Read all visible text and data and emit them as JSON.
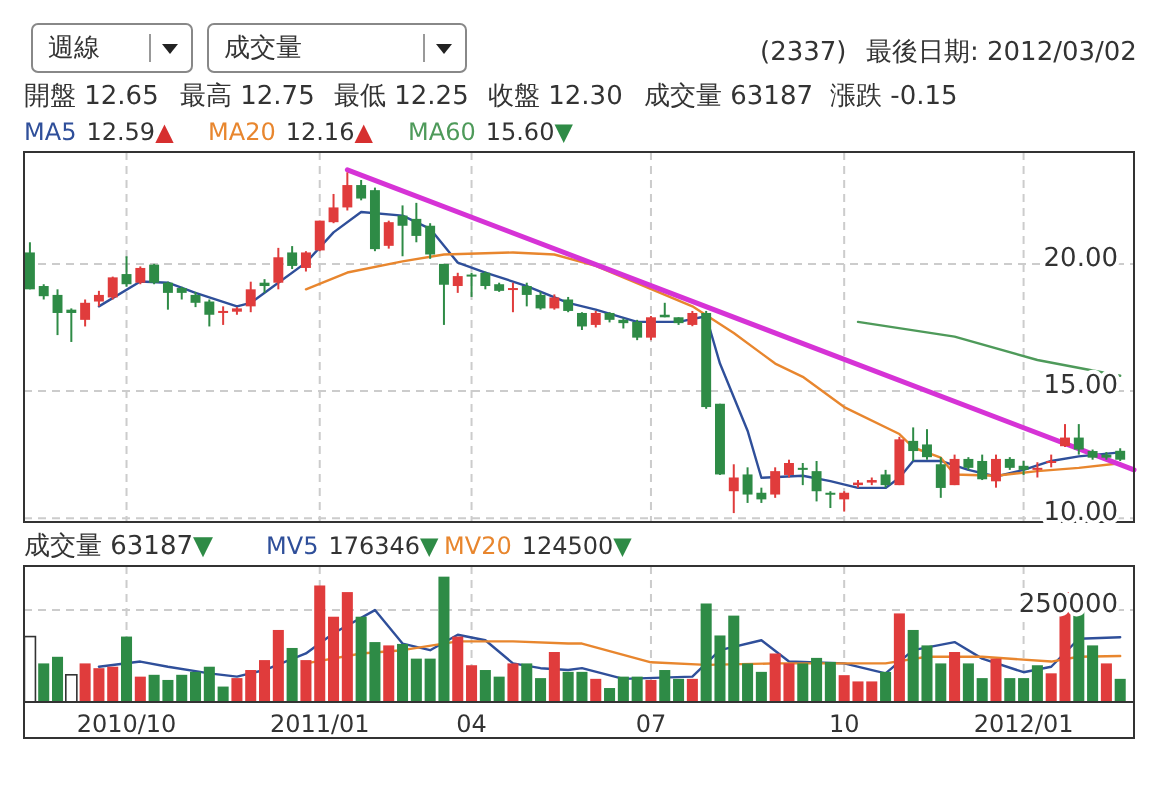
{
  "chart_data": [
    {
      "type": "candlestick",
      "x": [
        "2010-08-27",
        "2010-09-03",
        "2010-09-10",
        "2010-09-17",
        "2010-09-24",
        "2010-10-01",
        "2010-10-08",
        "2010-10-15",
        "2010-10-22",
        "2010-10-29",
        "2010-11-05",
        "2010-11-12",
        "2010-11-19",
        "2010-11-26",
        "2010-12-03",
        "2010-12-10",
        "2010-12-17",
        "2010-12-24",
        "2010-12-31",
        "2011-01-07",
        "2011-01-14",
        "2011-01-21",
        "2011-01-28",
        "2011-02-04",
        "2011-02-11",
        "2011-02-18",
        "2011-02-25",
        "2011-03-04",
        "2011-03-11",
        "2011-03-18",
        "2011-03-25",
        "2011-04-01",
        "2011-04-08",
        "2011-04-15",
        "2011-04-22",
        "2011-04-29",
        "2011-05-06",
        "2011-05-13",
        "2011-05-20",
        "2011-05-27",
        "2011-06-03",
        "2011-06-10",
        "2011-06-17",
        "2011-06-24",
        "2011-07-01",
        "2011-07-08",
        "2011-07-15",
        "2011-07-22",
        "2011-07-29",
        "2011-08-05",
        "2011-08-12",
        "2011-08-19",
        "2011-08-26",
        "2011-09-02",
        "2011-09-09",
        "2011-09-16",
        "2011-09-23",
        "2011-09-30",
        "2011-10-07",
        "2011-10-14",
        "2011-10-21",
        "2011-10-28",
        "2011-11-04",
        "2011-11-11",
        "2011-11-18",
        "2011-11-25",
        "2011-12-02",
        "2011-12-09",
        "2011-12-16",
        "2011-12-23",
        "2011-12-30",
        "2012-01-06",
        "2012-01-13",
        "2012-01-20",
        "2012-01-27",
        "2012-02-03",
        "2012-02-10",
        "2012-02-17",
        "2012-02-24",
        "2012-03-02"
      ],
      "ohlc": [
        [
          20.45,
          20.85,
          19.0,
          19.0
        ],
        [
          19.13,
          19.2,
          18.6,
          18.73
        ],
        [
          18.78,
          19.0,
          17.2,
          18.07
        ],
        [
          18.2,
          18.25,
          16.93,
          18.07
        ],
        [
          17.8,
          18.6,
          17.54,
          18.47
        ],
        [
          18.52,
          18.94,
          18.33,
          18.78
        ],
        [
          18.68,
          19.5,
          18.6,
          19.47
        ],
        [
          19.6,
          20.3,
          19.1,
          19.2
        ],
        [
          19.26,
          19.9,
          19.2,
          19.84
        ],
        [
          19.97,
          20.0,
          19.2,
          19.26
        ],
        [
          19.26,
          19.3,
          18.2,
          18.86
        ],
        [
          19.05,
          19.1,
          18.6,
          18.86
        ],
        [
          18.78,
          18.9,
          18.3,
          18.47
        ],
        [
          18.52,
          18.6,
          17.54,
          18.0
        ],
        [
          18.07,
          18.33,
          17.6,
          18.15
        ],
        [
          18.12,
          18.3,
          18.0,
          18.25
        ],
        [
          18.33,
          19.3,
          18.1,
          19.0
        ],
        [
          19.26,
          19.4,
          18.86,
          19.13
        ],
        [
          19.26,
          20.63,
          19.0,
          20.26
        ],
        [
          20.45,
          20.7,
          19.8,
          19.92
        ],
        [
          19.84,
          20.5,
          19.7,
          20.45
        ],
        [
          20.53,
          21.7,
          20.5,
          21.7
        ],
        [
          21.64,
          22.75,
          21.6,
          22.22
        ],
        [
          22.22,
          23.6,
          22.1,
          23.1
        ],
        [
          23.1,
          23.3,
          22.5,
          22.57
        ],
        [
          22.9,
          23.0,
          20.5,
          20.58
        ],
        [
          20.71,
          21.7,
          20.6,
          21.64
        ],
        [
          21.9,
          22.3,
          20.3,
          21.5
        ],
        [
          21.77,
          22.4,
          20.85,
          21.1
        ],
        [
          21.5,
          21.6,
          20.2,
          20.37
        ],
        [
          20.0,
          20.0,
          17.6,
          19.18
        ],
        [
          19.13,
          19.65,
          18.86,
          19.52
        ],
        [
          19.58,
          19.65,
          18.7,
          19.52
        ],
        [
          19.65,
          19.7,
          19.0,
          19.13
        ],
        [
          19.2,
          19.26,
          18.9,
          18.94
        ],
        [
          18.99,
          19.26,
          18.1,
          19.05
        ],
        [
          19.13,
          19.26,
          18.33,
          18.78
        ],
        [
          18.78,
          18.9,
          18.2,
          18.25
        ],
        [
          18.25,
          18.8,
          18.2,
          18.68
        ],
        [
          18.6,
          18.7,
          18.1,
          18.15
        ],
        [
          18.07,
          18.1,
          17.4,
          17.54
        ],
        [
          17.6,
          18.15,
          17.5,
          18.07
        ],
        [
          18.07,
          18.1,
          17.7,
          17.8
        ],
        [
          17.8,
          17.85,
          17.46,
          17.67
        ],
        [
          17.72,
          17.8,
          17.0,
          17.1
        ],
        [
          17.1,
          17.95,
          17.0,
          17.9
        ],
        [
          18.0,
          18.47,
          17.9,
          17.9
        ],
        [
          17.9,
          17.9,
          17.6,
          17.67
        ],
        [
          17.6,
          18.15,
          17.55,
          18.07
        ],
        [
          18.07,
          18.15,
          14.3,
          14.37
        ],
        [
          14.5,
          14.5,
          11.7,
          11.72
        ],
        [
          11.06,
          12.12,
          10.2,
          11.6
        ],
        [
          11.72,
          12.0,
          10.6,
          10.93
        ],
        [
          11.0,
          11.2,
          10.6,
          10.74
        ],
        [
          10.93,
          12.0,
          10.8,
          11.85
        ],
        [
          11.7,
          12.3,
          11.6,
          12.17
        ],
        [
          11.98,
          12.17,
          11.3,
          11.9
        ],
        [
          11.85,
          12.25,
          10.66,
          11.06
        ],
        [
          11.0,
          11.06,
          10.4,
          10.93
        ],
        [
          10.74,
          11.06,
          10.26,
          11.0
        ],
        [
          11.3,
          11.5,
          11.2,
          11.4
        ],
        [
          11.4,
          11.6,
          11.3,
          11.5
        ],
        [
          11.72,
          11.9,
          11.2,
          11.3
        ],
        [
          11.3,
          13.2,
          11.3,
          13.1
        ],
        [
          13.04,
          13.57,
          12.25,
          12.64
        ],
        [
          12.9,
          13.5,
          12.3,
          12.4
        ],
        [
          12.12,
          12.4,
          10.8,
          11.19
        ],
        [
          11.3,
          12.5,
          11.3,
          12.33
        ],
        [
          12.33,
          12.4,
          11.9,
          11.98
        ],
        [
          12.25,
          12.5,
          11.5,
          11.53
        ],
        [
          11.45,
          12.5,
          11.2,
          12.33
        ],
        [
          12.33,
          12.4,
          11.9,
          11.98
        ],
        [
          12.06,
          12.25,
          11.7,
          11.9
        ],
        [
          11.9,
          12.2,
          11.6,
          11.98
        ],
        [
          12.17,
          12.5,
          12.0,
          12.25
        ],
        [
          12.83,
          13.7,
          12.8,
          13.17
        ],
        [
          13.17,
          13.7,
          12.5,
          12.7
        ],
        [
          12.64,
          12.7,
          12.3,
          12.38
        ],
        [
          12.5,
          12.6,
          12.3,
          12.38
        ],
        [
          12.65,
          12.75,
          12.25,
          12.3
        ]
      ],
      "series": [
        {
          "name": "MA5",
          "color": "#2f4f9a",
          "type": "line",
          "x": [
            "2010-10-01",
            "2010-10-22",
            "2010-11-05",
            "2010-11-19",
            "2010-12-10",
            "2010-12-17",
            "2010-12-31",
            "2011-01-14",
            "2011-01-28",
            "2011-02-11",
            "2011-03-04",
            "2011-03-18",
            "2011-04-01",
            "2011-04-15",
            "2011-05-06",
            "2011-05-27",
            "2011-06-10",
            "2011-07-01",
            "2011-07-22",
            "2011-08-05",
            "2011-08-12",
            "2011-08-26",
            "2011-09-02",
            "2011-09-23",
            "2011-10-07",
            "2011-10-21",
            "2011-11-04",
            "2011-11-11",
            "2011-11-18",
            "2011-12-02",
            "2011-12-16",
            "2011-12-30",
            "2012-01-13",
            "2012-01-27",
            "2012-02-10",
            "2012-03-02"
          ],
          "values": [
            18.33,
            19.31,
            19.26,
            18.86,
            18.33,
            18.47,
            19.26,
            20.05,
            21.24,
            22.04,
            21.9,
            21.38,
            20.05,
            19.66,
            19.13,
            18.47,
            18.2,
            17.72,
            17.72,
            17.94,
            16.08,
            13.44,
            11.59,
            11.67,
            11.46,
            11.19,
            11.19,
            11.59,
            12.25,
            12.25,
            11.9,
            11.64,
            11.9,
            12.25,
            12.43,
            12.59
          ]
        },
        {
          "name": "MA20",
          "color": "#e8862e",
          "type": "line",
          "x": [
            "2011-01-14",
            "2011-02-04",
            "2011-03-04",
            "2011-03-25",
            "2011-04-29",
            "2011-05-20",
            "2011-06-10",
            "2011-07-29",
            "2011-08-19",
            "2011-09-02",
            "2011-09-09",
            "2011-09-23",
            "2011-10-14",
            "2011-11-11",
            "2011-11-18",
            "2011-12-02",
            "2011-12-09",
            "2011-12-30",
            "2012-01-20",
            "2012-02-10",
            "2012-03-02"
          ],
          "values": [
            19.0,
            19.66,
            20.1,
            20.37,
            20.45,
            20.37,
            19.92,
            18.33,
            17.28,
            16.48,
            16.08,
            15.56,
            14.37,
            13.31,
            12.78,
            12.38,
            11.72,
            11.67,
            11.85,
            11.98,
            12.16
          ]
        },
        {
          "name": "MA60",
          "color": "#4e9a5a",
          "type": "line",
          "x": [
            "2011-10-21",
            "2011-12-09",
            "2012-01-20",
            "2012-03-02"
          ],
          "values": [
            17.72,
            17.14,
            16.22,
            15.6
          ]
        },
        {
          "color": "#d633d6",
          "type": "line",
          "x": [
            "2011-02-04",
            "2012-03-09"
          ],
          "values": [
            23.7,
            11.9
          ]
        }
      ],
      "xlim": [
        "2010-08-24",
        "2012-03-09"
      ],
      "xticks": [
        {
          "value": "2010-10-15",
          "label": null
        },
        {
          "value": "2011-01-21",
          "label": null
        },
        {
          "value": "2011-04-08",
          "label": null
        },
        {
          "value": "2011-07-08",
          "label": null
        },
        {
          "value": "2011-10-14",
          "label": null
        },
        {
          "value": "2012-01-13",
          "label": null
        }
      ],
      "ylim": [
        9.85,
        24.4
      ],
      "yticks": [
        {
          "value": 10,
          "label": "10.00"
        },
        {
          "value": 15,
          "label": "15.00"
        },
        {
          "value": 20,
          "label": "20.00"
        }
      ],
      "tick_labels": "y",
      "grid": true,
      "legend": "top left",
      "annotations": [
        "週線",
        "成交量",
        "(2337)",
        "最後日期: 2012/03/02",
        "開盤 12.65",
        "最高 12.75",
        "最低 12.25",
        "收盤 12.30",
        "成交量 63187",
        "漲跌 -0.15",
        "12.59▲",
        "12.16▲",
        "15.60▼"
      ]
    },
    {
      "type": "bar",
      "x": [
        "2010-08-27",
        "2010-09-03",
        "2010-09-10",
        "2010-09-17",
        "2010-09-24",
        "2010-10-01",
        "2010-10-08",
        "2010-10-15",
        "2010-10-22",
        "2010-10-29",
        "2010-11-05",
        "2010-11-12",
        "2010-11-19",
        "2010-11-26",
        "2010-12-03",
        "2010-12-10",
        "2010-12-17",
        "2010-12-24",
        "2010-12-31",
        "2011-01-07",
        "2011-01-14",
        "2011-01-21",
        "2011-01-28",
        "2011-02-04",
        "2011-02-11",
        "2011-02-18",
        "2011-02-25",
        "2011-03-04",
        "2011-03-11",
        "2011-03-18",
        "2011-03-25",
        "2011-04-01",
        "2011-04-08",
        "2011-04-15",
        "2011-04-22",
        "2011-04-29",
        "2011-05-06",
        "2011-05-13",
        "2011-05-20",
        "2011-05-27",
        "2011-06-03",
        "2011-06-10",
        "2011-06-17",
        "2011-06-24",
        "2011-07-01",
        "2011-07-08",
        "2011-07-15",
        "2011-07-22",
        "2011-07-29",
        "2011-08-05",
        "2011-08-12",
        "2011-08-19",
        "2011-08-26",
        "2011-09-02",
        "2011-09-09",
        "2011-09-16",
        "2011-09-23",
        "2011-09-30",
        "2011-10-07",
        "2011-10-14",
        "2011-10-21",
        "2011-10-28",
        "2011-11-04",
        "2011-11-11",
        "2011-11-18",
        "2011-11-25",
        "2011-12-02",
        "2011-12-09",
        "2011-12-16",
        "2011-12-23",
        "2011-12-30",
        "2012-01-06",
        "2012-01-13",
        "2012-01-20",
        "2012-01-27",
        "2012-02-03",
        "2012-02-10",
        "2012-02-17",
        "2012-02-24",
        "2012-03-02"
      ],
      "values": [
        178000,
        105000,
        123000,
        74000,
        105000,
        92000,
        96000,
        178000,
        69000,
        74000,
        60000,
        74000,
        82000,
        96000,
        42000,
        65000,
        87000,
        114000,
        196000,
        147000,
        114000,
        317000,
        232000,
        299000,
        232000,
        163000,
        154000,
        158000,
        118000,
        118000,
        341000,
        178000,
        100000,
        87000,
        69000,
        105000,
        105000,
        65000,
        136000,
        82000,
        82000,
        63000,
        38000,
        69000,
        69000,
        60000,
        87000,
        63000,
        63000,
        268000,
        181000,
        235000,
        105000,
        82000,
        132000,
        105000,
        105000,
        120000,
        109000,
        73000,
        56000,
        56000,
        82000,
        241000,
        196000,
        154000,
        105000,
        136000,
        105000,
        65000,
        118000,
        65000,
        65000,
        100000,
        78000,
        299000,
        250000,
        154000,
        105000,
        63000
      ],
      "colors": [
        "#ffffff",
        "#2e8b46",
        "#2e8b46",
        "#ffffff",
        "#e03c3c",
        "#e03c3c",
        "#e03c3c",
        "#2e8b46",
        "#e03c3c",
        "#2e8b46",
        "#2e8b46",
        "#2e8b46",
        "#2e8b46",
        "#2e8b46",
        "#2e8b46",
        "#e03c3c",
        "#e03c3c",
        "#e03c3c",
        "#e03c3c",
        "#2e8b46",
        "#e03c3c",
        "#e03c3c",
        "#e03c3c",
        "#e03c3c",
        "#2e8b46",
        "#2e8b46",
        "#e03c3c",
        "#2e8b46",
        "#2e8b46",
        "#2e8b46",
        "#2e8b46",
        "#e03c3c",
        "#e03c3c",
        "#2e8b46",
        "#2e8b46",
        "#e03c3c",
        "#2e8b46",
        "#2e8b46",
        "#e03c3c",
        "#2e8b46",
        "#2e8b46",
        "#e03c3c",
        "#2e8b46",
        "#2e8b46",
        "#2e8b46",
        "#e03c3c",
        "#2e8b46",
        "#2e8b46",
        "#e03c3c",
        "#2e8b46",
        "#2e8b46",
        "#2e8b46",
        "#2e8b46",
        "#2e8b46",
        "#e03c3c",
        "#e03c3c",
        "#2e8b46",
        "#2e8b46",
        "#2e8b46",
        "#e03c3c",
        "#e03c3c",
        "#e03c3c",
        "#2e8b46",
        "#e03c3c",
        "#2e8b46",
        "#2e8b46",
        "#2e8b46",
        "#e03c3c",
        "#2e8b46",
        "#2e8b46",
        "#e03c3c",
        "#2e8b46",
        "#2e8b46",
        "#2e8b46",
        "#e03c3c",
        "#e03c3c",
        "#2e8b46",
        "#2e8b46",
        "#e03c3c",
        "#2e8b46"
      ],
      "series": [
        {
          "name": "MV5",
          "color": "#2f4f9a",
          "type": "line",
          "x": [
            "2010-10-01",
            "2010-10-22",
            "2010-11-05",
            "2010-11-26",
            "2010-12-10",
            "2010-12-24",
            "2011-01-14",
            "2011-01-28",
            "2011-02-18",
            "2011-03-04",
            "2011-03-18",
            "2011-04-01",
            "2011-04-15",
            "2011-04-29",
            "2011-05-13",
            "2011-05-27",
            "2011-06-03",
            "2011-06-24",
            "2011-07-29",
            "2011-08-12",
            "2011-09-02",
            "2011-09-16",
            "2011-10-14",
            "2011-11-04",
            "2011-11-18",
            "2011-12-09",
            "2011-12-23",
            "2012-01-13",
            "2012-01-27",
            "2012-02-10",
            "2012-03-02"
          ],
          "values": [
            96000,
            110000,
            96000,
            78000,
            69000,
            87000,
            132000,
            187000,
            250000,
            159000,
            141000,
            183000,
            168000,
            105000,
            92000,
            87000,
            92000,
            63000,
            69000,
            141000,
            168000,
            110000,
            105000,
            78000,
            141000,
            163000,
            118000,
            81000,
            96000,
            172000,
            176000
          ]
        },
        {
          "name": "MV20",
          "color": "#e8862e",
          "type": "line",
          "x": [
            "2011-01-14",
            "2011-02-11",
            "2011-03-04",
            "2011-04-01",
            "2011-04-29",
            "2011-05-27",
            "2011-06-03",
            "2011-07-08",
            "2011-08-05",
            "2011-09-09",
            "2011-11-04",
            "2011-11-25",
            "2011-12-23",
            "2012-01-27",
            "2012-02-10",
            "2012-03-02"
          ],
          "values": [
            105000,
            132000,
            141000,
            165000,
            165000,
            159000,
            159000,
            108000,
            101000,
            105000,
            105000,
            123000,
            123000,
            110000,
            123000,
            125000
          ]
        }
      ],
      "xlim": [
        "2010-08-24",
        "2012-03-09"
      ],
      "xticks": [
        {
          "value": "2010-10-15",
          "label": "2010/10"
        },
        {
          "value": "2011-01-21",
          "label": "2011/01"
        },
        {
          "value": "2011-04-08",
          "label": "04"
        },
        {
          "value": "2011-07-08",
          "label": "07"
        },
        {
          "value": "2011-10-14",
          "label": "10"
        },
        {
          "value": "2012-01-13",
          "label": "2012/01"
        }
      ],
      "ylim": [
        0,
        370000
      ],
      "yticks": [
        {
          "value": 250000,
          "label": "250000"
        }
      ],
      "grid": true,
      "legend": "top left",
      "annotations": [
        "成交量 63187▼",
        "176346▼",
        "124500▼"
      ]
    }
  ]
}
